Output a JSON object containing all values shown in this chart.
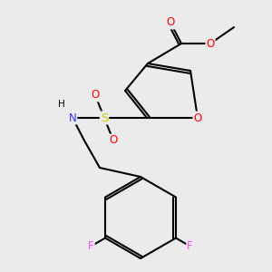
{
  "background_color": "#ebebeb",
  "bond_color": "#000000",
  "atom_colors": {
    "O": "#ff0000",
    "N": "#3333ff",
    "S": "#cccc00",
    "F": "#ff44ff",
    "C": "#000000",
    "H": "#000000"
  },
  "figsize": [
    3.0,
    3.0
  ],
  "dpi": 100,
  "xlim": [
    0,
    10
  ],
  "ylim": [
    0,
    10
  ]
}
